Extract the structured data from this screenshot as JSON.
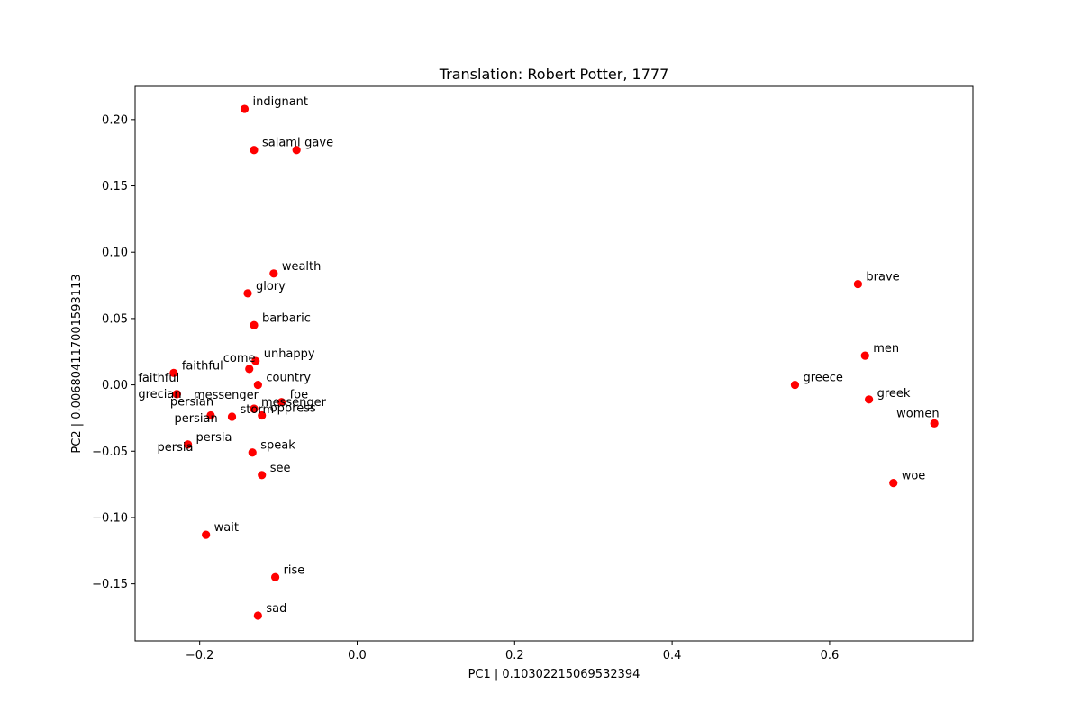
{
  "chart_data": {
    "type": "scatter",
    "title": "Translation: Robert Potter, 1777",
    "xlabel": "PC1 | 0.10302215069532394",
    "ylabel": "PC2 | 0.0068041170015931​13",
    "xlim": [
      -0.282,
      0.782
    ],
    "ylim": [
      -0.193,
      0.225
    ],
    "xticks": [
      -0.2,
      0.0,
      0.2,
      0.4,
      0.6
    ],
    "xtick_labels": [
      "−0.2",
      "0.0",
      "0.2",
      "0.4",
      "0.6"
    ],
    "yticks": [
      -0.15,
      -0.1,
      -0.05,
      0.0,
      0.05,
      0.1,
      0.15,
      0.2
    ],
    "ytick_labels": [
      "−0.15",
      "−0.10",
      "−0.05",
      "0.00",
      "0.05",
      "0.10",
      "0.15",
      "0.20"
    ],
    "grid": false,
    "marker_color": "#ff0000",
    "points": [
      {
        "label": "indignant",
        "x": -0.143,
        "y": 0.208
      },
      {
        "label": "salami",
        "x": -0.131,
        "y": 0.177
      },
      {
        "label": "gave",
        "x": -0.077,
        "y": 0.177
      },
      {
        "label": "wealth",
        "x": -0.106,
        "y": 0.084
      },
      {
        "label": "glory",
        "x": -0.139,
        "y": 0.069
      },
      {
        "label": "barbaric",
        "x": -0.131,
        "y": 0.045
      },
      {
        "label": "unhappy",
        "x": -0.129,
        "y": 0.018
      },
      {
        "label": "faithful",
        "x": -0.233,
        "y": 0.009
      },
      {
        "label": "faithful",
        "x": -0.229,
        "y": -0.007
      },
      {
        "label": "grecian",
        "x": -0.229,
        "y": -0.007
      },
      {
        "label": "come",
        "x": -0.137,
        "y": 0.012
      },
      {
        "label": "country",
        "x": -0.126,
        "y": 0.0
      },
      {
        "label": "foe",
        "x": -0.096,
        "y": -0.013
      },
      {
        "label": "messenger",
        "x": -0.131,
        "y": -0.018
      },
      {
        "label": "messenger",
        "x": -0.131,
        "y": -0.018
      },
      {
        "label": "persian",
        "x": -0.186,
        "y": -0.023
      },
      {
        "label": "persian",
        "x": -0.159,
        "y": -0.024
      },
      {
        "label": "storm",
        "x": -0.159,
        "y": -0.024
      },
      {
        "label": "oppress",
        "x": -0.121,
        "y": -0.023
      },
      {
        "label": "persia",
        "x": -0.215,
        "y": -0.045
      },
      {
        "label": "persia",
        "x": -0.215,
        "y": -0.045
      },
      {
        "label": "speak",
        "x": -0.133,
        "y": -0.051
      },
      {
        "label": "see",
        "x": -0.121,
        "y": -0.068
      },
      {
        "label": "wait",
        "x": -0.192,
        "y": -0.113
      },
      {
        "label": "rise",
        "x": -0.104,
        "y": -0.145
      },
      {
        "label": "sad",
        "x": -0.126,
        "y": -0.174
      },
      {
        "label": "brave",
        "x": 0.636,
        "y": 0.076
      },
      {
        "label": "men",
        "x": 0.645,
        "y": 0.022
      },
      {
        "label": "greece",
        "x": 0.556,
        "y": 0.0
      },
      {
        "label": "greek",
        "x": 0.65,
        "y": -0.011
      },
      {
        "label": "women",
        "x": 0.733,
        "y": -0.029
      },
      {
        "label": "woe",
        "x": 0.681,
        "y": -0.074
      }
    ]
  }
}
